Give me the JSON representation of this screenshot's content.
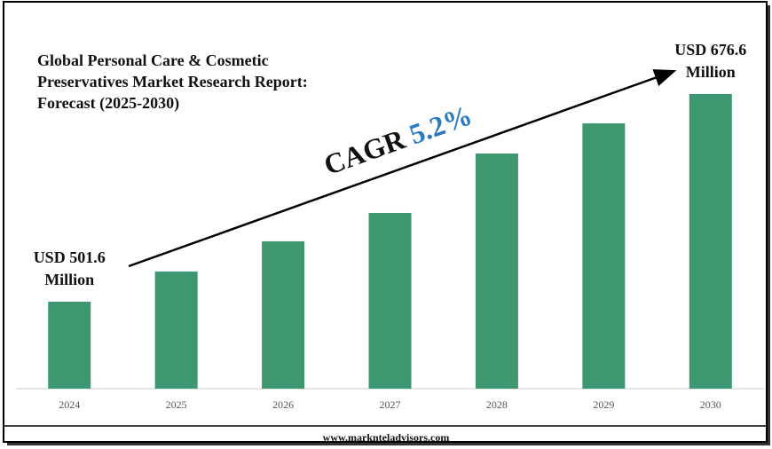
{
  "chart_data": {
    "type": "bar",
    "title": "Global Personal Care & Cosmetic Preservatives Market Research Report: Forecast (2025-2030)",
    "categories": [
      "2024",
      "2025",
      "2026",
      "2027",
      "2028",
      "2029",
      "2030"
    ],
    "values": [
      501.6,
      527.0,
      552.5,
      576.4,
      626.5,
      651.9,
      676.6
    ],
    "value_labels": [
      "USD 501.6 Million",
      null,
      null,
      null,
      null,
      null,
      "USD 676.6 Million"
    ],
    "color": "#3d9872",
    "ylim": [
      428.3,
      676.6
    ],
    "annotation": {
      "label": "CAGR",
      "value": "5.2%"
    },
    "source": "www.marknteladvisors.com"
  }
}
